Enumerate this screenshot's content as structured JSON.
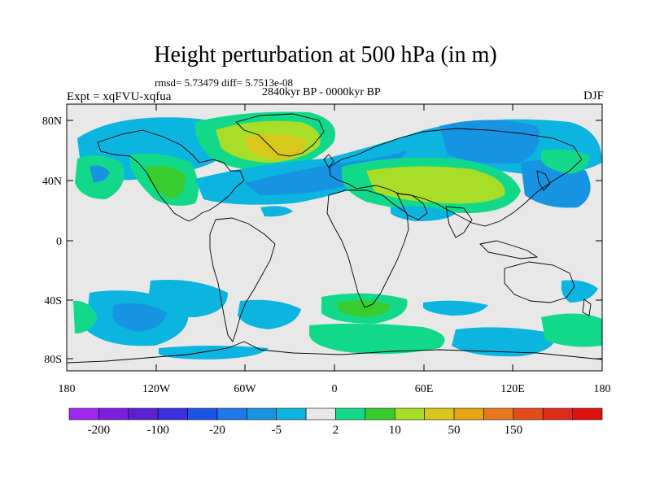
{
  "title": "Height perturbation at 500 hPa (in m)",
  "stats": "rmsd= 5.73479 diff= 5.7513e-08",
  "experiment": "Expt = xqFVU-xqfua",
  "period": "2840kyr BP - 0000kyr BP",
  "season": "DJF",
  "lat_ticks": [
    "80N",
    "40N",
    "0",
    "40S",
    "80S"
  ],
  "lon_ticks": [
    "180",
    "120W",
    "60W",
    "0",
    "60E",
    "120E",
    "180"
  ],
  "colorbar": {
    "colors": [
      "#9f28f0",
      "#7a1ee0",
      "#5d1fd2",
      "#3a2fe0",
      "#1c52e6",
      "#1e78e8",
      "#1694e2",
      "#0cb4e0",
      "#e8e8e8",
      "#12d98a",
      "#39cc2e",
      "#a8dd28",
      "#d8c81c",
      "#e5a412",
      "#e8781e",
      "#e54c1c",
      "#e02a18",
      "#e01010"
    ],
    "labels": [
      "-200",
      "-100",
      "-20",
      "-5",
      "2",
      "10",
      "50",
      "150"
    ]
  },
  "field_colors": {
    "strong_neg": "#1c52e6",
    "mid_neg": "#1694e2",
    "weak_neg": "#0cb4e0",
    "neutral": "#e8e8e8",
    "weak_pos": "#12d98a",
    "mid_pos": "#39cc2e",
    "pos": "#a8dd28",
    "strong_pos": "#d8c81c"
  }
}
